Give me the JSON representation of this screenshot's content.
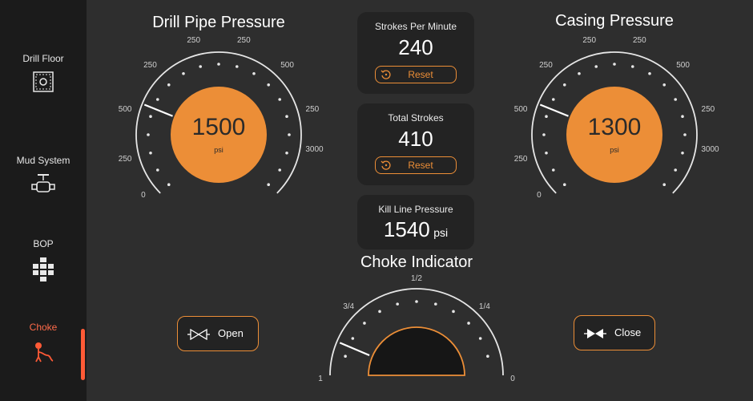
{
  "sidebar": {
    "items": [
      {
        "label": "Drill Floor",
        "icon": "drill-floor-icon"
      },
      {
        "label": "Mud System",
        "icon": "mud-system-icon"
      },
      {
        "label": "BOP",
        "icon": "bop-icon"
      },
      {
        "label": "Choke",
        "icon": "choke-icon"
      }
    ],
    "active_index": 3
  },
  "drill_pipe_gauge": {
    "title": "Drill Pipe Pressure",
    "value": "1500",
    "unit": "psi",
    "ticks": [
      "0",
      "250",
      "500",
      "250",
      "250",
      "250",
      "500",
      "250",
      "3000"
    ]
  },
  "casing_gauge": {
    "title": "Casing Pressure",
    "value": "1300",
    "unit": "psi",
    "ticks": [
      "0",
      "250",
      "500",
      "250",
      "250",
      "250",
      "500",
      "250",
      "3000"
    ]
  },
  "strokes_per_minute": {
    "title": "Strokes Per Minute",
    "value": "240",
    "reset_label": "Reset"
  },
  "total_strokes": {
    "title": "Total Strokes",
    "value": "410",
    "reset_label": "Reset"
  },
  "kill_line": {
    "title": "Kill Line Pressure",
    "value": "1540",
    "unit": "psi"
  },
  "choke_indicator": {
    "title": "Choke Indicator",
    "ticks": [
      "1",
      "3/4",
      "1/2",
      "1/4",
      "0"
    ]
  },
  "open_button": {
    "label": "Open"
  },
  "close_button": {
    "label": "Close"
  },
  "colors": {
    "accent": "#ec8e37",
    "active": "#ff5a36",
    "background": "#2e2e2e",
    "sidebar": "#1b1b1b"
  }
}
